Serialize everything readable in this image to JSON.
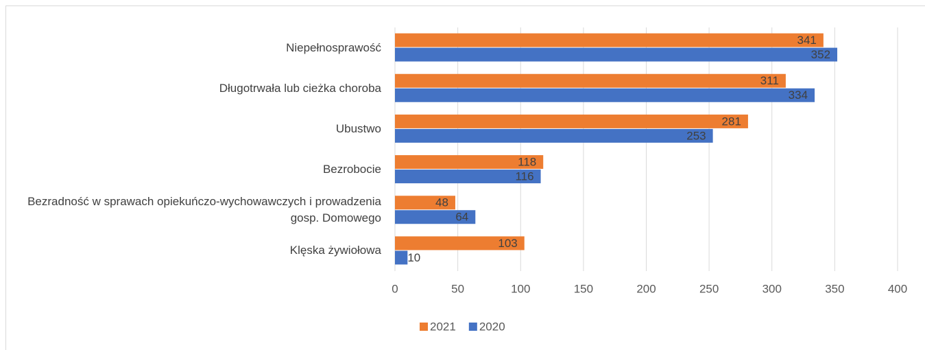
{
  "chart_data": {
    "type": "barh",
    "categories": [
      "Niepełnosprawość",
      "Długotrwała lub cieżka choroba",
      "Ubustwo",
      "Bezrobocie",
      "Bezradność w sprawach opiekuńczo-wychowawczych i prowadzenia gosp. Domowego",
      "Klęska żywiołowa"
    ],
    "series": [
      {
        "name": "2021",
        "color": "#ed7d31",
        "values": [
          341,
          311,
          281,
          118,
          48,
          103
        ]
      },
      {
        "name": "2020",
        "color": "#4472c4",
        "values": [
          352,
          334,
          253,
          116,
          64,
          10
        ]
      }
    ],
    "xlim": [
      0,
      400
    ],
    "xticks": [
      0,
      50,
      100,
      150,
      200,
      250,
      300,
      350,
      400
    ],
    "grid": true,
    "legend": "bottom"
  }
}
